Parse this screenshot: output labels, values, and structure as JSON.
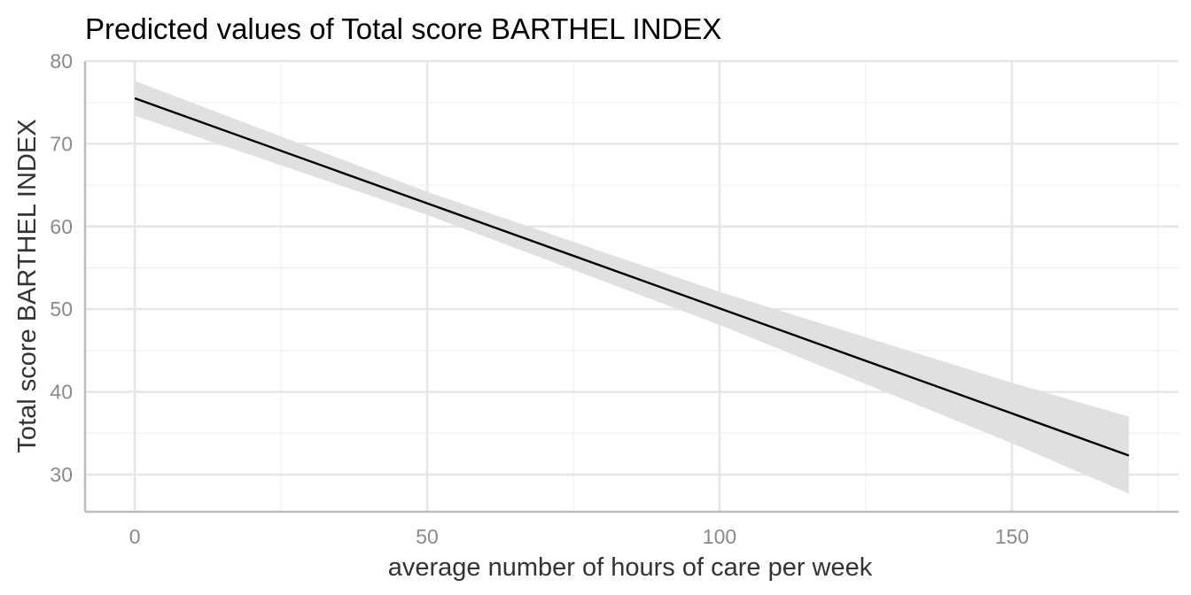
{
  "chart_data": {
    "type": "line",
    "title": "Predicted values of Total score BARTHEL INDEX",
    "xlabel": "average number of hours of care per week",
    "ylabel": "Total score BARTHEL INDEX",
    "xlim": [
      -8.5,
      178.5
    ],
    "ylim": [
      25.5,
      80.0
    ],
    "x_ticks": [
      0,
      50,
      100,
      150
    ],
    "x_tick_labels": [
      "0",
      "50",
      "100",
      "150"
    ],
    "y_ticks": [
      30,
      40,
      50,
      60,
      70,
      80
    ],
    "y_tick_labels": [
      "30",
      "40",
      "50",
      "60",
      "70",
      "80"
    ],
    "grid": true,
    "legend": "none",
    "series": [
      {
        "x": [
          0,
          50,
          100,
          150,
          170
        ],
        "y": [
          75.5,
          62.8,
          50.1,
          37.4,
          32.3
        ],
        "ci_lower": [
          73.4,
          61.4,
          48.1,
          33.8,
          27.7
        ],
        "ci_upper": [
          77.6,
          64.2,
          52.1,
          41.1,
          37.0
        ],
        "color": "#000000",
        "ribbon_color": "#e0e0e0"
      }
    ]
  }
}
